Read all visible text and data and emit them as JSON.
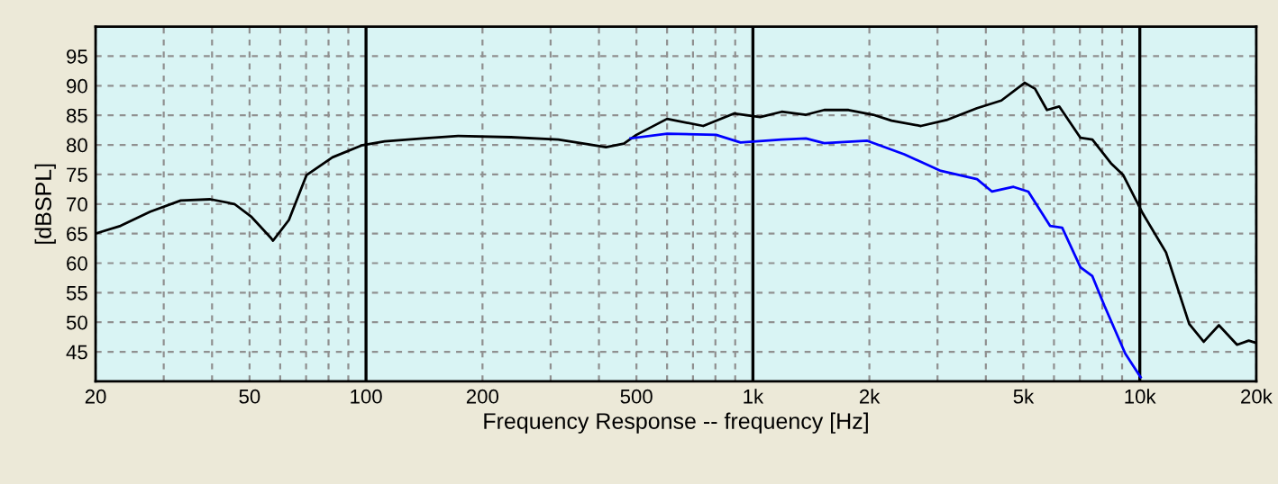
{
  "chart_data": {
    "type": "line",
    "xlabel": "Frequency Response -- frequency [Hz]",
    "ylabel": "[dBSPL]",
    "log": "x",
    "grid": true,
    "xlim": [
      20,
      20000
    ],
    "ylim": [
      40,
      100
    ],
    "xticks": [
      20,
      {
        "value": 30,
        "label": null
      },
      {
        "value": 40,
        "label": null
      },
      50,
      {
        "value": 60,
        "label": null
      },
      {
        "value": 70,
        "label": null
      },
      {
        "value": 80,
        "label": null
      },
      {
        "value": 90,
        "label": null
      },
      100,
      200,
      {
        "value": 300,
        "label": null
      },
      {
        "value": 400,
        "label": null
      },
      500,
      {
        "value": 600,
        "label": null
      },
      {
        "value": 700,
        "label": null
      },
      {
        "value": 800,
        "label": null
      },
      {
        "value": 900,
        "label": null
      },
      {
        "value": 1000,
        "label": "1k"
      },
      {
        "value": 2000,
        "label": "2k"
      },
      {
        "value": 3000,
        "label": null
      },
      {
        "value": 4000,
        "label": null
      },
      {
        "value": 5000,
        "label": "5k"
      },
      {
        "value": 6000,
        "label": null
      },
      {
        "value": 7000,
        "label": null
      },
      {
        "value": 8000,
        "label": null
      },
      {
        "value": 9000,
        "label": null
      },
      {
        "value": 10000,
        "label": "10k"
      },
      {
        "value": 20000,
        "label": "20k"
      }
    ],
    "yticks": [
      45,
      50,
      55,
      60,
      65,
      70,
      75,
      80,
      85,
      90,
      95
    ],
    "series": [
      {
        "color": "#000000",
        "x": [
          20,
          23.2,
          27.7,
          33.2,
          39.6,
          45.7,
          50.6,
          56.7,
          57.5,
          63.2,
          70.2,
          81.9,
          97.3,
          111.7,
          140,
          173,
          237,
          314,
          375,
          417,
          464,
          500,
          600,
          744,
          893,
          1044,
          1187,
          1371,
          1529,
          1767,
          2045,
          2283,
          2718,
          3164,
          3795,
          4386,
          5038,
          5359,
          5755,
          6190,
          7025,
          7540,
          8420,
          9060,
          10180,
          11690,
          13420,
          14630,
          16010,
          17840,
          19120,
          20000
        ],
        "values": [
          65.0,
          66.3,
          68.7,
          70.6,
          70.8,
          70.0,
          67.8,
          64.3,
          63.8,
          67.3,
          74.9,
          77.9,
          79.9,
          80.6,
          81.1,
          81.5,
          81.3,
          80.9,
          80.1,
          79.6,
          80.2,
          81.7,
          84.4,
          83.2,
          85.3,
          84.7,
          85.6,
          85.1,
          85.9,
          85.9,
          85.1,
          84.1,
          83.2,
          84.2,
          86.2,
          87.5,
          90.5,
          89.5,
          85.9,
          86.5,
          81.2,
          80.9,
          76.9,
          74.9,
          68.4,
          61.8,
          49.7,
          46.7,
          49.5,
          46.2,
          46.9,
          46.5
        ]
      },
      {
        "color": "#0000ff",
        "x": [
          483,
          600,
          803,
          929,
          1187,
          1371,
          1529,
          1975,
          2460,
          3060,
          3795,
          4150,
          4715,
          5150,
          5860,
          6300,
          7025,
          7540,
          8100,
          9170,
          10050
        ],
        "values": [
          81.1,
          81.9,
          81.7,
          80.4,
          80.9,
          81.1,
          80.3,
          80.7,
          78.4,
          75.6,
          74.2,
          72.1,
          72.9,
          72.1,
          66.3,
          66.0,
          59.3,
          57.8,
          52.8,
          44.7,
          40.7
        ]
      }
    ]
  }
}
